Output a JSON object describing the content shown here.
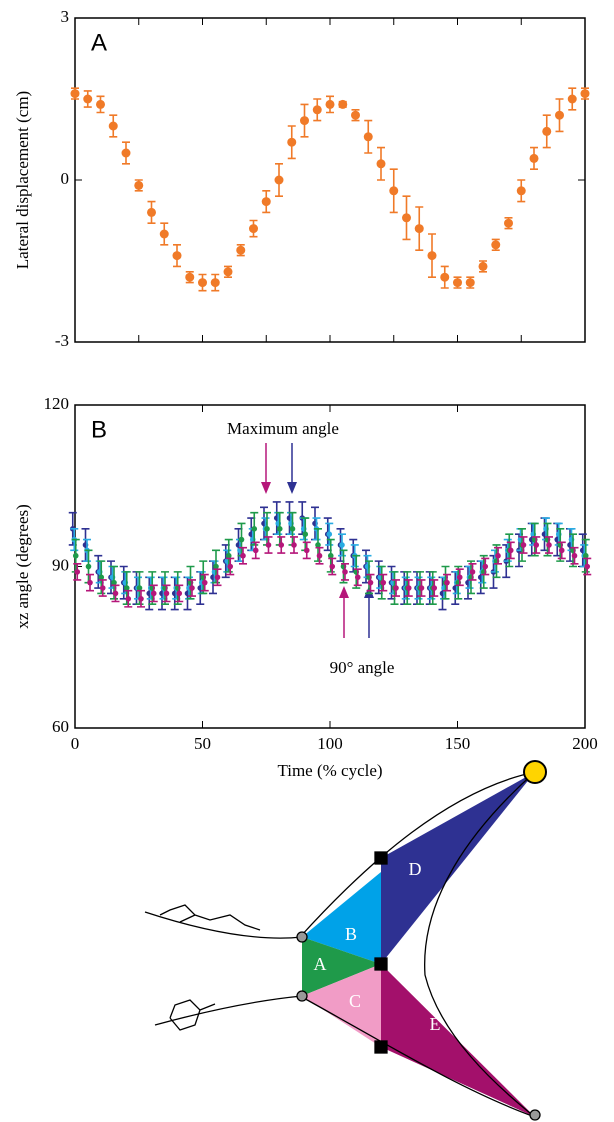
{
  "chart_data": [
    {
      "type": "errorbar",
      "panel": "A",
      "ylabel": "Lateral displacement (cm)",
      "xlim": [
        0,
        200
      ],
      "xticks": [
        0,
        25,
        50,
        75,
        100,
        125,
        150,
        175,
        200
      ],
      "ylim": [
        -3,
        3
      ],
      "yticks": [
        -3,
        0,
        3
      ],
      "x": [
        0,
        5,
        10,
        15,
        20,
        25,
        30,
        35,
        40,
        45,
        50,
        55,
        60,
        65,
        70,
        75,
        80,
        85,
        90,
        95,
        100,
        105,
        110,
        115,
        120,
        125,
        130,
        135,
        140,
        145,
        150,
        155,
        160,
        165,
        170,
        175,
        180,
        185,
        190,
        195,
        200
      ],
      "series": [
        {
          "color": "#f07a28",
          "values": [
            1.6,
            1.5,
            1.4,
            1.0,
            0.5,
            -0.1,
            -0.6,
            -1.0,
            -1.4,
            -1.8,
            -1.9,
            -1.9,
            -1.7,
            -1.3,
            -0.9,
            -0.4,
            0.0,
            0.7,
            1.1,
            1.3,
            1.4,
            1.4,
            1.2,
            0.8,
            0.3,
            -0.2,
            -0.7,
            -0.9,
            -1.4,
            -1.8,
            -1.9,
            -1.9,
            -1.6,
            -1.2,
            -0.8,
            -0.2,
            0.4,
            0.9,
            1.2,
            1.5,
            1.6
          ],
          "errors": [
            0.1,
            0.15,
            0.15,
            0.2,
            0.2,
            0.1,
            0.2,
            0.2,
            0.2,
            0.1,
            0.15,
            0.15,
            0.1,
            0.1,
            0.15,
            0.2,
            0.3,
            0.3,
            0.3,
            0.2,
            0.15,
            0.05,
            0.1,
            0.3,
            0.3,
            0.4,
            0.4,
            0.4,
            0.4,
            0.2,
            0.1,
            0.1,
            0.1,
            0.1,
            0.1,
            0.2,
            0.2,
            0.3,
            0.3,
            0.2,
            0.1
          ]
        }
      ]
    },
    {
      "type": "errorbar",
      "panel": "B",
      "ylabel": "xz angle (degrees)",
      "xlabel": "Time (% cycle)",
      "xlim": [
        0,
        200
      ],
      "xticks": [
        0,
        50,
        100,
        150,
        200
      ],
      "ylim": [
        60,
        120
      ],
      "yticks": [
        60,
        90,
        120
      ],
      "annotations": [
        "Maximum angle",
        "90° angle"
      ],
      "x": [
        0,
        5,
        10,
        15,
        20,
        25,
        30,
        35,
        40,
        45,
        50,
        55,
        60,
        65,
        70,
        75,
        80,
        85,
        90,
        95,
        100,
        105,
        110,
        115,
        120,
        125,
        130,
        135,
        140,
        145,
        150,
        155,
        160,
        165,
        170,
        175,
        180,
        185,
        190,
        195,
        200
      ],
      "series": [
        {
          "color": "#2e3192",
          "error": 3,
          "values": [
            97,
            94,
            89,
            88,
            87,
            86,
            85,
            85,
            85,
            85,
            86,
            88,
            91,
            94,
            96,
            98,
            99,
            99,
            99,
            98,
            96,
            94,
            92,
            90,
            88,
            87,
            86,
            86,
            86,
            85,
            86,
            87,
            88,
            89,
            91,
            93,
            95,
            96,
            95,
            94,
            93
          ]
        },
        {
          "color": "#29abe2",
          "error": 2,
          "values": [
            95,
            93,
            89,
            88,
            87,
            86,
            86,
            86,
            86,
            86,
            87,
            89,
            91,
            93,
            95,
            97,
            98,
            98,
            97,
            97,
            96,
            94,
            92,
            90,
            88,
            87,
            86,
            86,
            86,
            86,
            87,
            88,
            89,
            91,
            93,
            95,
            96,
            97,
            96,
            95,
            92
          ]
        },
        {
          "color": "#1f9a4a",
          "error": 3,
          "values": [
            92,
            90,
            88,
            87,
            86,
            86,
            86,
            86,
            86,
            87,
            88,
            90,
            92,
            95,
            97,
            97,
            97,
            97,
            96,
            94,
            92,
            90,
            89,
            88,
            87,
            86,
            86,
            86,
            86,
            87,
            87,
            88,
            89,
            91,
            93,
            94,
            95,
            95,
            94,
            93,
            92
          ]
        },
        {
          "color": "#b5177a",
          "error": 1.5,
          "values": [
            89,
            87,
            86,
            85,
            84,
            84,
            85,
            85,
            85,
            86,
            87,
            88,
            90,
            92,
            93,
            94,
            94,
            94,
            93,
            92,
            90,
            89,
            88,
            87,
            87,
            86,
            86,
            86,
            86,
            87,
            88,
            89,
            90,
            92,
            93,
            94,
            94,
            94,
            93,
            92,
            90
          ]
        }
      ]
    }
  ],
  "diagram": {
    "labels": [
      "A",
      "B",
      "C",
      "D",
      "E"
    ]
  }
}
